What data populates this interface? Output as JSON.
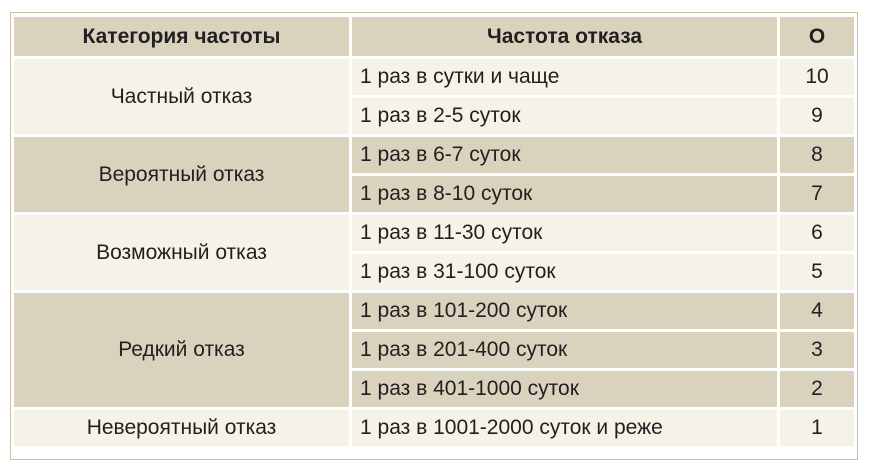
{
  "table": {
    "headers": {
      "category": "Категория частоты",
      "frequency": "Частота отказа",
      "score": "О"
    },
    "groups": [
      {
        "category": "Частный отказ",
        "rows": [
          {
            "frequency": "1 раз в сутки и чаще",
            "score": "10"
          },
          {
            "frequency": "1 раз в 2-5 суток",
            "score": "9"
          }
        ]
      },
      {
        "category": "Вероятный отказ",
        "rows": [
          {
            "frequency": "1 раз в 6-7 суток",
            "score": "8"
          },
          {
            "frequency": "1 раз в 8-10 суток",
            "score": "7"
          }
        ]
      },
      {
        "category": "Возможный отказ",
        "rows": [
          {
            "frequency": "1 раз в 11-30 суток",
            "score": "6"
          },
          {
            "frequency": "1 раз в 31-100 суток",
            "score": "5"
          }
        ]
      },
      {
        "category": "Редкий отказ",
        "rows": [
          {
            "frequency": "1 раз в 101-200 суток",
            "score": "4"
          },
          {
            "frequency": "1 раз в 201-400 суток",
            "score": "3"
          },
          {
            "frequency": "1 раз в 401-1000 суток",
            "score": "2"
          }
        ]
      },
      {
        "category": "Невероятный отказ",
        "rows": [
          {
            "frequency": "1 раз в 1001-2000 суток и реже",
            "score": "1"
          }
        ]
      }
    ]
  },
  "colors": {
    "header_bg": "#d9d3bd",
    "row_dark": "#d9d3bd",
    "row_light": "#f5f2e7",
    "text": "#231f20",
    "frame_border": "#cbc3a4"
  }
}
